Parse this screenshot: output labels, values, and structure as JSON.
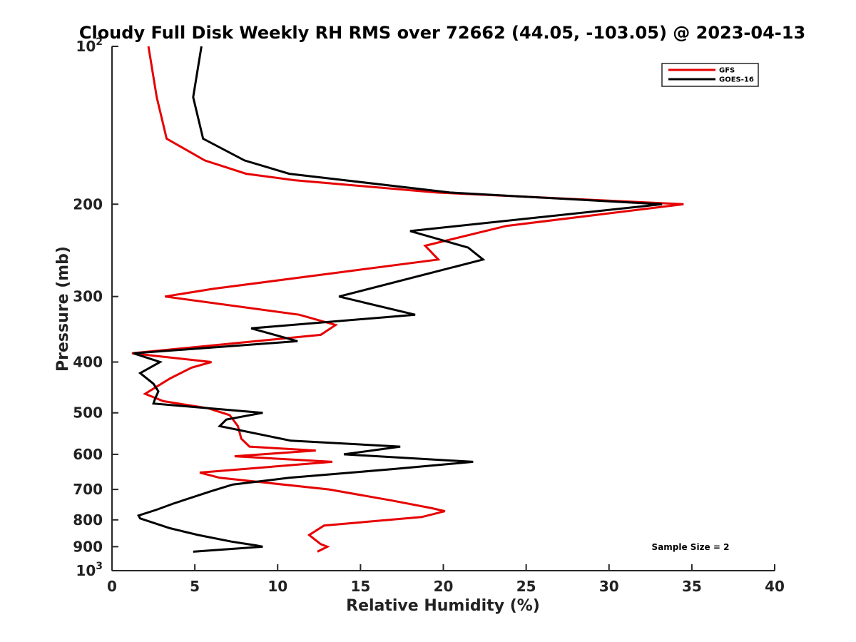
{
  "chart_data": {
    "type": "line",
    "title": "Cloudy Full Disk Weekly RH RMS over 72662 (44.05, -103.05) @ 2023-04-13",
    "xlabel": "Relative Humidity (%)",
    "ylabel": "Pressure (mb)",
    "xlim": [
      0,
      40
    ],
    "ylim": [
      100,
      1000
    ],
    "y_scale": "log",
    "y_reversed": true,
    "x_ticks": [
      "0",
      "5",
      "10",
      "15",
      "20",
      "25",
      "30",
      "35",
      "40"
    ],
    "y_ticks": [
      {
        "value": 100,
        "base": "10",
        "exp": "2"
      },
      {
        "value": 200,
        "label": "200"
      },
      {
        "value": 300,
        "label": "300"
      },
      {
        "value": 400,
        "label": "400"
      },
      {
        "value": 500,
        "label": "500"
      },
      {
        "value": 600,
        "label": "600"
      },
      {
        "value": 700,
        "label": "700"
      },
      {
        "value": 800,
        "label": "800"
      },
      {
        "value": 900,
        "label": "900"
      },
      {
        "value": 1000,
        "base": "10",
        "exp": "3"
      }
    ],
    "grid": false,
    "legend_position": "top-right",
    "annotation": "Sample Size = 2",
    "series": [
      {
        "name": "GFS",
        "color": "#e60000",
        "points": [
          [
            2.2,
            100
          ],
          [
            2.7,
            125
          ],
          [
            3.3,
            150
          ],
          [
            5.6,
            165
          ],
          [
            8.1,
            175
          ],
          [
            11.0,
            180
          ],
          [
            19.6,
            190
          ],
          [
            34.5,
            200
          ],
          [
            23.8,
            220
          ],
          [
            18.9,
            240
          ],
          [
            19.7,
            255
          ],
          [
            6.1,
            290
          ],
          [
            3.2,
            300
          ],
          [
            11.3,
            325
          ],
          [
            13.5,
            340
          ],
          [
            12.6,
            355
          ],
          [
            1.2,
            385
          ],
          [
            6.0,
            400
          ],
          [
            4.8,
            410
          ],
          [
            3.5,
            430
          ],
          [
            2.0,
            460
          ],
          [
            3.1,
            475
          ],
          [
            5.8,
            490
          ],
          [
            7.1,
            505
          ],
          [
            7.6,
            530
          ],
          [
            7.8,
            560
          ],
          [
            8.3,
            580
          ],
          [
            12.3,
            590
          ],
          [
            7.4,
            605
          ],
          [
            13.3,
            620
          ],
          [
            5.3,
            650
          ],
          [
            6.5,
            665
          ],
          [
            13.1,
            700
          ],
          [
            16.9,
            735
          ],
          [
            19.3,
            760
          ],
          [
            20.1,
            770
          ],
          [
            18.7,
            790
          ],
          [
            12.8,
            820
          ],
          [
            11.9,
            855
          ],
          [
            12.6,
            890
          ],
          [
            13.0,
            900
          ],
          [
            12.4,
            920
          ]
        ]
      },
      {
        "name": "GOES-16",
        "color": "#000000",
        "points": [
          [
            5.4,
            100
          ],
          [
            4.9,
            125
          ],
          [
            5.5,
            150
          ],
          [
            8.0,
            165
          ],
          [
            10.7,
            175
          ],
          [
            20.4,
            190
          ],
          [
            33.2,
            200
          ],
          [
            18.0,
            225
          ],
          [
            21.5,
            242
          ],
          [
            22.4,
            255
          ],
          [
            13.7,
            300
          ],
          [
            18.3,
            325
          ],
          [
            8.4,
            345
          ],
          [
            11.2,
            365
          ],
          [
            1.3,
            385
          ],
          [
            2.9,
            400
          ],
          [
            1.7,
            420
          ],
          [
            2.5,
            440
          ],
          [
            2.8,
            455
          ],
          [
            2.6,
            470
          ],
          [
            2.5,
            480
          ],
          [
            9.1,
            500
          ],
          [
            6.9,
            515
          ],
          [
            6.5,
            530
          ],
          [
            10.8,
            565
          ],
          [
            17.4,
            580
          ],
          [
            14.0,
            600
          ],
          [
            21.8,
            620
          ],
          [
            17.0,
            640
          ],
          [
            10.7,
            665
          ],
          [
            7.3,
            685
          ],
          [
            6.0,
            705
          ],
          [
            3.7,
            745
          ],
          [
            2.7,
            765
          ],
          [
            1.6,
            785
          ],
          [
            1.7,
            795
          ],
          [
            3.5,
            830
          ],
          [
            5.2,
            855
          ],
          [
            7.2,
            880
          ],
          [
            8.7,
            895
          ],
          [
            9.1,
            900
          ],
          [
            4.9,
            920
          ]
        ]
      }
    ]
  }
}
